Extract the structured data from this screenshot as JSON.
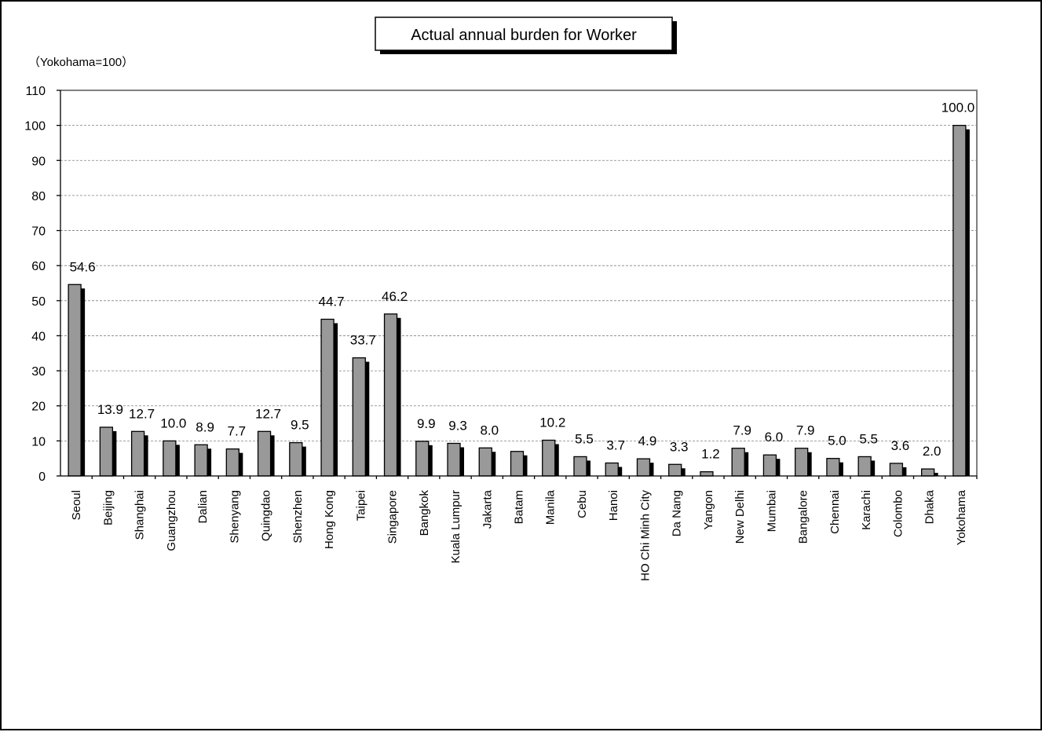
{
  "chart_data": {
    "type": "bar",
    "title": "Actual annual burden for Worker",
    "unit_note": "（Yokohama=100）",
    "ylim": [
      0,
      110
    ],
    "yticks": [
      0,
      10,
      20,
      30,
      40,
      50,
      60,
      70,
      80,
      90,
      100,
      110
    ],
    "grid": true,
    "categories": [
      "Seoul",
      "Beijing",
      "Shanghai",
      "Guangzhou",
      "Dalian",
      "Shenyang",
      "Quingdao",
      "Shenzhen",
      "Hong Kong",
      "Taipei",
      "Singapore",
      "Bangkok",
      "Kuala Lumpur",
      "Jakarta",
      "Batam",
      "Manila",
      "Cebu",
      "Hanoi",
      "HO Chi Minh City",
      "Da Nang",
      "Yangon",
      "New Delhi",
      "Mumbai",
      "Bangalore",
      "Chennai",
      "Karachi",
      "Colombo",
      "Dhaka",
      "Yokohama"
    ],
    "values": [
      54.6,
      13.9,
      12.7,
      10.0,
      8.9,
      7.7,
      12.7,
      9.5,
      44.7,
      33.7,
      46.2,
      9.9,
      9.3,
      8.0,
      7.0,
      10.2,
      5.5,
      3.7,
      4.9,
      3.3,
      1.2,
      7.9,
      6.0,
      7.9,
      5.0,
      5.5,
      3.6,
      2.0,
      100.0
    ],
    "data_labels": [
      "54.6",
      "13.9",
      "12.7",
      "10.0",
      "8.9",
      "7.7",
      "12.7",
      "9.5",
      "44.7",
      "33.7",
      "46.2",
      "9.9",
      "9.3",
      "8.0",
      "",
      "10.2",
      "5.5",
      "3.7",
      "4.9",
      "3.3",
      "1.2",
      "7.9",
      "6.0",
      "7.9",
      "5.0",
      "5.5",
      "3.6",
      "2.0",
      "100.0"
    ],
    "colors": {
      "bar": "#999999",
      "shadow": "#000000",
      "grid": "#808080"
    }
  }
}
